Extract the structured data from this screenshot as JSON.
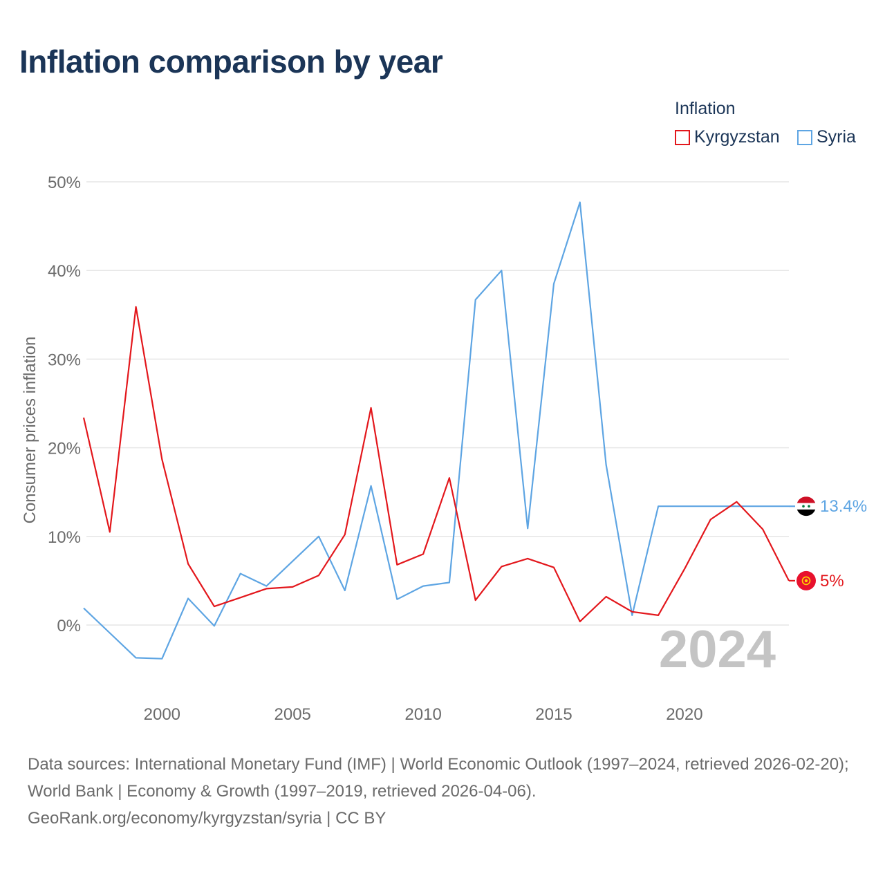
{
  "title": "Inflation comparison by year",
  "legend": {
    "title": "Inflation",
    "items": [
      {
        "label": "Kyrgyzstan",
        "color": "#e3171c"
      },
      {
        "label": "Syria",
        "color": "#5ea5e3"
      }
    ]
  },
  "sources": {
    "line1": "Data sources: International Monetary Fund (IMF) | World Economic Outlook (1997–2024, retrieved 2026-02-20); World Bank | Economy & Growth (1997–2019, retrieved 2026-04-06).",
    "line2": "GeoRank.org/economy/kyrgyzstan/syria | CC BY"
  },
  "chart_data": {
    "type": "line",
    "title": "Inflation comparison by year",
    "xlabel": "",
    "ylabel": "Consumer prices inflation",
    "xlim": [
      1997,
      2024
    ],
    "ylim": [
      -8,
      52
    ],
    "grid": true,
    "legend_position": "top-right",
    "y_ticks": [
      0,
      10,
      20,
      30,
      40,
      50
    ],
    "y_tick_labels": [
      "0%",
      "10%",
      "20%",
      "30%",
      "40%",
      "50%"
    ],
    "x_ticks": [
      2000,
      2005,
      2010,
      2015,
      2020
    ],
    "x_tick_labels": [
      "2000",
      "2005",
      "2010",
      "2015",
      "2020"
    ],
    "year_label": "2024",
    "x": [
      1997,
      1998,
      1999,
      2000,
      2001,
      2002,
      2003,
      2004,
      2005,
      2006,
      2007,
      2008,
      2009,
      2010,
      2011,
      2012,
      2013,
      2014,
      2015,
      2016,
      2017,
      2018,
      2019,
      2020,
      2021,
      2022,
      2023,
      2024
    ],
    "series": [
      {
        "name": "Kyrgyzstan",
        "color": "#e3171c",
        "end_label": "5%",
        "values": [
          23.4,
          10.5,
          35.9,
          18.7,
          6.9,
          2.1,
          3.1,
          4.1,
          4.3,
          5.6,
          10.2,
          24.5,
          6.8,
          8.0,
          16.6,
          2.8,
          6.6,
          7.5,
          6.5,
          0.4,
          3.2,
          1.5,
          1.1,
          6.3,
          11.9,
          13.9,
          10.8,
          5.0
        ]
      },
      {
        "name": "Syria",
        "color": "#5ea5e3",
        "end_label": "13.4%",
        "values": [
          1.9,
          -0.9,
          -3.7,
          -3.8,
          3.0,
          -0.1,
          5.8,
          4.4,
          7.2,
          10.0,
          3.9,
          15.7,
          2.9,
          4.4,
          4.8,
          36.7,
          40.0,
          10.9,
          38.5,
          47.7,
          18.1,
          1.1,
          13.4,
          13.4,
          13.4,
          13.4,
          13.4,
          13.4
        ]
      }
    ]
  }
}
